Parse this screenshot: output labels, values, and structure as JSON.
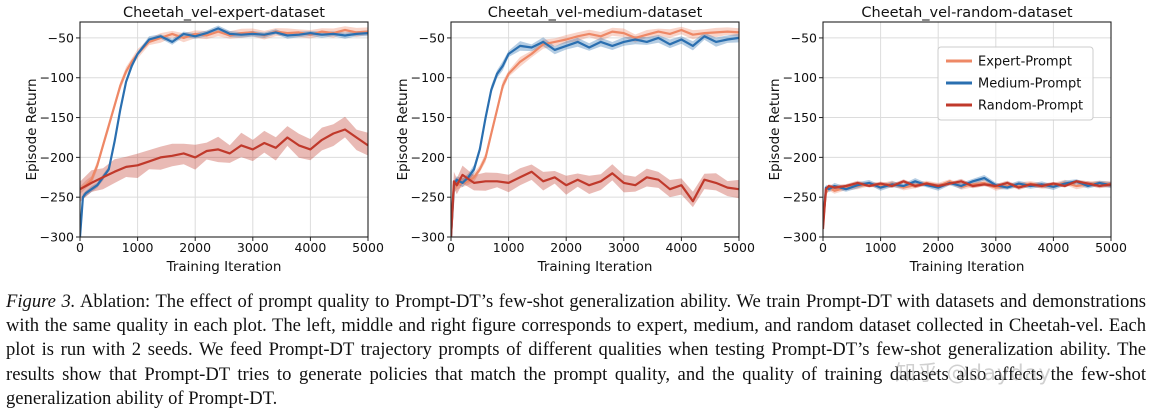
{
  "chart_data": [
    {
      "type": "line",
      "title": "Cheetah_vel-expert-dataset",
      "xlabel": "Training Iteration",
      "ylabel": "Episode Return",
      "xlim": [
        0,
        5000
      ],
      "ylim": [
        -300,
        -30
      ],
      "xticks": [
        0,
        1000,
        2000,
        3000,
        4000,
        5000
      ],
      "yticks": [
        -300,
        -250,
        -200,
        -150,
        -100,
        -50
      ],
      "legend": null,
      "series": [
        {
          "name": "Expert-Prompt",
          "color": "#ee8866",
          "x": [
            0,
            100,
            200,
            300,
            400,
            500,
            600,
            700,
            800,
            900,
            1000,
            1200,
            1400,
            1600,
            1800,
            2000,
            2200,
            2400,
            2600,
            2800,
            3000,
            3200,
            3400,
            3600,
            3800,
            4000,
            4200,
            4400,
            4600,
            4800,
            5000
          ],
          "y": [
            -240,
            -235,
            -228,
            -210,
            -185,
            -160,
            -135,
            -110,
            -92,
            -80,
            -70,
            -55,
            -50,
            -45,
            -50,
            -45,
            -47,
            -42,
            -47,
            -44,
            -43,
            -47,
            -42,
            -44,
            -43,
            -46,
            -42,
            -44,
            -40,
            -43,
            -42
          ],
          "band": 6
        },
        {
          "name": "Medium-Prompt",
          "color": "#2a6fb0",
          "x": [
            0,
            50,
            100,
            200,
            300,
            400,
            500,
            600,
            700,
            800,
            900,
            1000,
            1200,
            1400,
            1600,
            1800,
            2000,
            2200,
            2400,
            2600,
            2800,
            3000,
            3200,
            3400,
            3600,
            3800,
            4000,
            4200,
            4400,
            4600,
            4800,
            5000
          ],
          "y": [
            -300,
            -250,
            -245,
            -240,
            -235,
            -225,
            -215,
            -180,
            -140,
            -105,
            -85,
            -70,
            -52,
            -48,
            -55,
            -45,
            -48,
            -44,
            -38,
            -45,
            -46,
            -45,
            -46,
            -43,
            -47,
            -46,
            -44,
            -46,
            -45,
            -47,
            -45,
            -44
          ],
          "band": 4
        },
        {
          "name": "Random-Prompt",
          "color": "#c0392b",
          "x": [
            0,
            200,
            400,
            600,
            800,
            1000,
            1200,
            1400,
            1600,
            1800,
            2000,
            2200,
            2400,
            2600,
            2800,
            3000,
            3200,
            3400,
            3600,
            3800,
            4000,
            4200,
            4400,
            4600,
            4800,
            5000
          ],
          "y": [
            -240,
            -232,
            -225,
            -218,
            -212,
            -210,
            -205,
            -200,
            -198,
            -195,
            -200,
            -192,
            -190,
            -195,
            -185,
            -190,
            -182,
            -188,
            -175,
            -185,
            -190,
            -178,
            -170,
            -165,
            -175,
            -185
          ],
          "band": 16
        }
      ]
    },
    {
      "type": "line",
      "title": "Cheetah_vel-medium-dataset",
      "xlabel": "Training Iteration",
      "ylabel": "Episode Return",
      "xlim": [
        0,
        5000
      ],
      "ylim": [
        -300,
        -30
      ],
      "xticks": [
        0,
        1000,
        2000,
        3000,
        4000,
        5000
      ],
      "yticks": [
        -300,
        -250,
        -200,
        -150,
        -100,
        -50
      ],
      "legend": null,
      "series": [
        {
          "name": "Expert-Prompt",
          "color": "#ee8866",
          "x": [
            0,
            50,
            100,
            200,
            300,
            400,
            500,
            600,
            700,
            800,
            900,
            1000,
            1200,
            1400,
            1600,
            1800,
            2000,
            2200,
            2400,
            2600,
            2800,
            3000,
            3200,
            3400,
            3600,
            3800,
            4000,
            4200,
            4400,
            4600,
            4800,
            5000
          ],
          "y": [
            -300,
            -240,
            -235,
            -232,
            -230,
            -225,
            -215,
            -200,
            -170,
            -140,
            -110,
            -95,
            -80,
            -70,
            -58,
            -55,
            -52,
            -48,
            -45,
            -48,
            -42,
            -44,
            -50,
            -46,
            -42,
            -45,
            -40,
            -46,
            -44,
            -43,
            -42,
            -43
          ],
          "band": 6
        },
        {
          "name": "Medium-Prompt",
          "color": "#2a6fb0",
          "x": [
            0,
            50,
            100,
            200,
            300,
            400,
            500,
            600,
            700,
            800,
            900,
            1000,
            1200,
            1400,
            1600,
            1800,
            2000,
            2200,
            2400,
            2600,
            2800,
            3000,
            3200,
            3400,
            3600,
            3800,
            4000,
            4200,
            4400,
            4600,
            4800,
            5000
          ],
          "y": [
            -300,
            -235,
            -228,
            -232,
            -225,
            -215,
            -190,
            -150,
            -115,
            -95,
            -85,
            -70,
            -60,
            -62,
            -55,
            -65,
            -60,
            -55,
            -62,
            -55,
            -60,
            -55,
            -52,
            -55,
            -50,
            -58,
            -52,
            -60,
            -48,
            -55,
            -52,
            -50
          ],
          "band": 6
        },
        {
          "name": "Random-Prompt",
          "color": "#c0392b",
          "x": [
            0,
            50,
            100,
            200,
            400,
            600,
            800,
            1000,
            1200,
            1400,
            1600,
            1800,
            2000,
            2200,
            2400,
            2600,
            2800,
            3000,
            3200,
            3400,
            3600,
            3800,
            4000,
            4200,
            4400,
            4600,
            4800,
            5000
          ],
          "y": [
            -300,
            -230,
            -235,
            -222,
            -232,
            -230,
            -230,
            -232,
            -225,
            -218,
            -230,
            -225,
            -235,
            -228,
            -235,
            -230,
            -220,
            -232,
            -235,
            -225,
            -228,
            -240,
            -235,
            -255,
            -228,
            -232,
            -238,
            -240
          ],
          "band": 12
        }
      ]
    },
    {
      "type": "line",
      "title": "Cheetah_vel-random-dataset",
      "xlabel": "Training Iteration",
      "ylabel": "Episode Return",
      "xlim": [
        0,
        5000
      ],
      "ylim": [
        -300,
        -30
      ],
      "xticks": [
        0,
        1000,
        2000,
        3000,
        4000,
        5000
      ],
      "yticks": [
        -300,
        -250,
        -200,
        -150,
        -100,
        -50
      ],
      "legend": {
        "position": "top-right",
        "entries": [
          "Expert-Prompt",
          "Medium-Prompt",
          "Random-Prompt"
        ]
      },
      "series": [
        {
          "name": "Expert-Prompt",
          "color": "#ee8866",
          "x": [
            0,
            50,
            100,
            200,
            400,
            600,
            800,
            1000,
            1200,
            1400,
            1600,
            1800,
            2000,
            2200,
            2400,
            2600,
            2800,
            3000,
            3200,
            3400,
            3600,
            3800,
            4000,
            4200,
            4400,
            4600,
            4800,
            5000
          ],
          "y": [
            -280,
            -245,
            -238,
            -242,
            -238,
            -236,
            -234,
            -236,
            -233,
            -238,
            -235,
            -232,
            -236,
            -230,
            -237,
            -234,
            -232,
            -238,
            -236,
            -235,
            -233,
            -236,
            -235,
            -232,
            -236,
            -234,
            -232,
            -234
          ],
          "band": 4
        },
        {
          "name": "Medium-Prompt",
          "color": "#2a6fb0",
          "x": [
            0,
            50,
            100,
            200,
            400,
            600,
            800,
            1000,
            1200,
            1400,
            1600,
            1800,
            2000,
            2200,
            2400,
            2600,
            2800,
            3000,
            3200,
            3400,
            3600,
            3800,
            4000,
            4200,
            4400,
            4600,
            4800,
            5000
          ],
          "y": [
            -285,
            -238,
            -240,
            -236,
            -240,
            -235,
            -232,
            -238,
            -234,
            -236,
            -230,
            -235,
            -238,
            -232,
            -236,
            -230,
            -226,
            -235,
            -238,
            -233,
            -236,
            -234,
            -237,
            -233,
            -230,
            -236,
            -232,
            -235
          ],
          "band": 4
        },
        {
          "name": "Random-Prompt",
          "color": "#c0392b",
          "x": [
            0,
            50,
            100,
            200,
            400,
            600,
            800,
            1000,
            1200,
            1400,
            1600,
            1800,
            2000,
            2200,
            2400,
            2600,
            2800,
            3000,
            3200,
            3400,
            3600,
            3800,
            4000,
            4200,
            4400,
            4600,
            4800,
            5000
          ],
          "y": [
            -290,
            -240,
            -236,
            -238,
            -236,
            -232,
            -236,
            -233,
            -236,
            -230,
            -236,
            -233,
            -236,
            -233,
            -230,
            -236,
            -234,
            -236,
            -232,
            -238,
            -234,
            -236,
            -233,
            -236,
            -230,
            -233,
            -236,
            -234
          ],
          "band": 3
        }
      ]
    }
  ],
  "caption": {
    "label": "Figure 3.",
    "text": "Ablation: The effect of prompt quality to Prompt-DT’s few-shot generalization ability. We train Prompt-DT with datasets and demonstrations with the same quality in each plot. The left, middle and right figure corresponds to expert, medium, and random dataset collected in Cheetah-vel. Each plot is run with 2 seeds. We feed Prompt-DT trajectory prompts of different qualities when testing Prompt-DT’s few-shot generalization ability. The results show that Prompt-DT tries to generate policies that match the prompt quality, and the quality of training datasets also affects the few-shot generalization ability of Prompt-DT."
  },
  "watermark": "知乎 @dayday"
}
